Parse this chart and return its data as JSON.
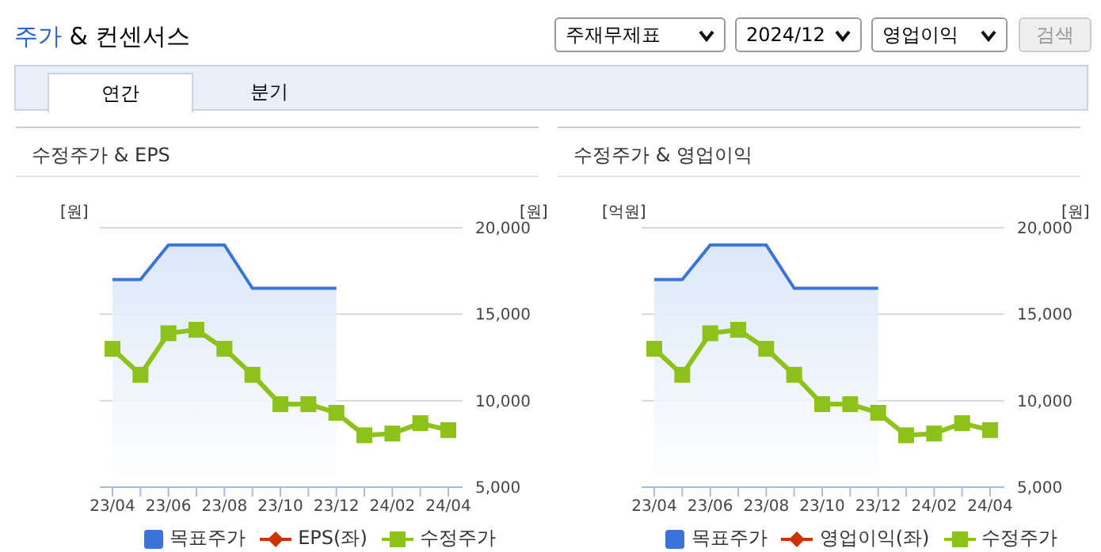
{
  "chart_data": [
    {
      "type": "other",
      "title": "주가 & 컨센서스",
      "annotations": [
        "주재무제표",
        "2024/12",
        "영업이익",
        "검색",
        "연간",
        "분기"
      ]
    },
    {
      "type": "line",
      "title": "수정주가 & EPS",
      "ylabel": "[원]",
      "y2label": "[원]",
      "categories": [
        "23/04",
        null,
        "23/06",
        null,
        "23/08",
        null,
        "23/10",
        null,
        "23/12",
        null,
        "24/02",
        null,
        "24/04"
      ],
      "series": [
        {
          "name": "목표주가",
          "type": "area",
          "color": "#3a74d6",
          "marker": "none",
          "axis": "y2",
          "values": [
            17000,
            17000,
            19000,
            19000,
            19000,
            16500,
            16500,
            16500,
            16500,
            null,
            null,
            null,
            null
          ]
        },
        {
          "name": "EPS(좌)",
          "type": "line",
          "color": "#cc3300",
          "marker": "diamond",
          "values": [
            null,
            null,
            null,
            null,
            null,
            null,
            null,
            null,
            null,
            null,
            null,
            null,
            null
          ]
        },
        {
          "name": "수정주가",
          "type": "line",
          "color": "#8cc21a",
          "marker": "square",
          "axis": "y2",
          "values": [
            13000,
            11500,
            13900,
            14100,
            13000,
            11500,
            9800,
            9800,
            9300,
            8000,
            8100,
            8700,
            8300
          ]
        }
      ],
      "y2lim": [
        5000,
        20000
      ],
      "y2ticks": [
        {
          "value": 5000,
          "label": "5,000"
        },
        {
          "value": 10000,
          "label": "10,000"
        },
        {
          "value": 15000,
          "label": "15,000"
        },
        {
          "value": 20000,
          "label": "20,000"
        }
      ],
      "grid": true,
      "legend": "bottom"
    },
    {
      "type": "line",
      "title": "수정주가 & 영업이익",
      "ylabel": "[억원]",
      "y2label": "[원]",
      "categories": [
        "23/04",
        null,
        "23/06",
        null,
        "23/08",
        null,
        "23/10",
        null,
        "23/12",
        null,
        "24/02",
        null,
        "24/04"
      ],
      "series": [
        {
          "name": "목표주가",
          "type": "area",
          "color": "#3a74d6",
          "marker": "none",
          "axis": "y2",
          "values": [
            17000,
            17000,
            19000,
            19000,
            19000,
            16500,
            16500,
            16500,
            16500,
            null,
            null,
            null,
            null
          ]
        },
        {
          "name": "영업이익(좌)",
          "type": "line",
          "color": "#cc3300",
          "marker": "diamond",
          "values": [
            null,
            null,
            null,
            null,
            null,
            null,
            null,
            null,
            null,
            null,
            null,
            null,
            null
          ]
        },
        {
          "name": "수정주가",
          "type": "line",
          "color": "#8cc21a",
          "marker": "square",
          "axis": "y2",
          "values": [
            13000,
            11500,
            13900,
            14100,
            13000,
            11500,
            9800,
            9800,
            9300,
            8000,
            8100,
            8700,
            8300
          ]
        }
      ],
      "y2lim": [
        5000,
        20000
      ],
      "y2ticks": [
        {
          "value": 5000,
          "label": "5,000"
        },
        {
          "value": 10000,
          "label": "10,000"
        },
        {
          "value": 15000,
          "label": "15,000"
        },
        {
          "value": 20000,
          "label": "20,000"
        }
      ],
      "grid": true,
      "legend": "bottom"
    }
  ]
}
